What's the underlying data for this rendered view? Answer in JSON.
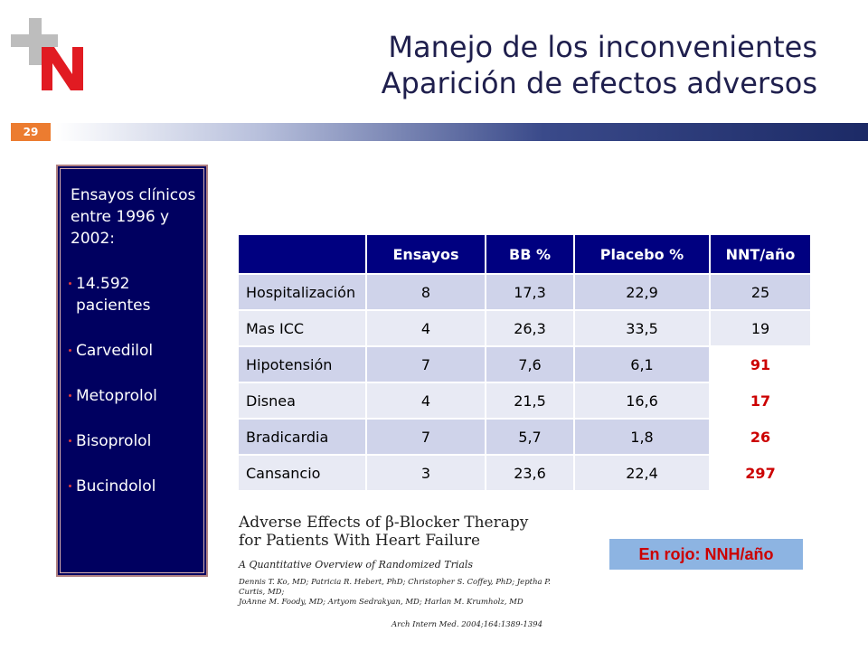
{
  "logo": {
    "icon": "plus-n-logo-icon",
    "colors": {
      "plus": "#bdbdbd",
      "n": "#e11b22"
    }
  },
  "title": {
    "line1": "Manejo de los inconvenientes",
    "line2": "Aparición de efectos adversos"
  },
  "slide_number": "29",
  "sidebar": {
    "intro": "Ensayos clínicos entre 1996 y 2002:",
    "items": [
      "14.592 pacientes",
      "Carvedilol",
      "Metoprolol",
      "Bisoprolol",
      "Bucindolol"
    ]
  },
  "table": {
    "headers": [
      "",
      "Ensayos",
      "BB %",
      "Placebo %",
      "NNT/año"
    ],
    "rows": [
      [
        "Hospitalización",
        "8",
        "17,3",
        "22,9",
        "25"
      ],
      [
        "Mas ICC",
        "4",
        "26,3",
        "33,5",
        "19"
      ],
      [
        "Hipotensión",
        "7",
        "7,6",
        "6,1",
        "91"
      ],
      [
        "Disnea",
        "4",
        "21,5",
        "16,6",
        "17"
      ],
      [
        "Bradicardia",
        "7",
        "5,7",
        "1,8",
        "26"
      ],
      [
        "Cansancio",
        "3",
        "23,6",
        "22,4",
        "297"
      ]
    ]
  },
  "reference": {
    "title_line1": "Adverse Effects of β-Blocker Therapy",
    "title_line2": "for Patients With Heart Failure",
    "subtitle": "A Quantitative Overview of Randomized Trials",
    "authors_line1": "Dennis T. Ko, MD; Patricia R. Hebert, PhD; Christopher S. Coffey, PhD; Jeptha P. Curtis, MD;",
    "authors_line2": "JoAnne M. Foody, MD; Artyom Sedrakyan, MD; Harlan M. Krumholz, MD",
    "citation": "Arch Intern Med. 2004;164:1389-1394"
  },
  "note": "En rojo: NNH/año",
  "colors": {
    "header_bg": "#000080",
    "sidebar_bg": "#000060",
    "nnh_red": "#cc0000",
    "accent_orange": "#ec7c30"
  }
}
